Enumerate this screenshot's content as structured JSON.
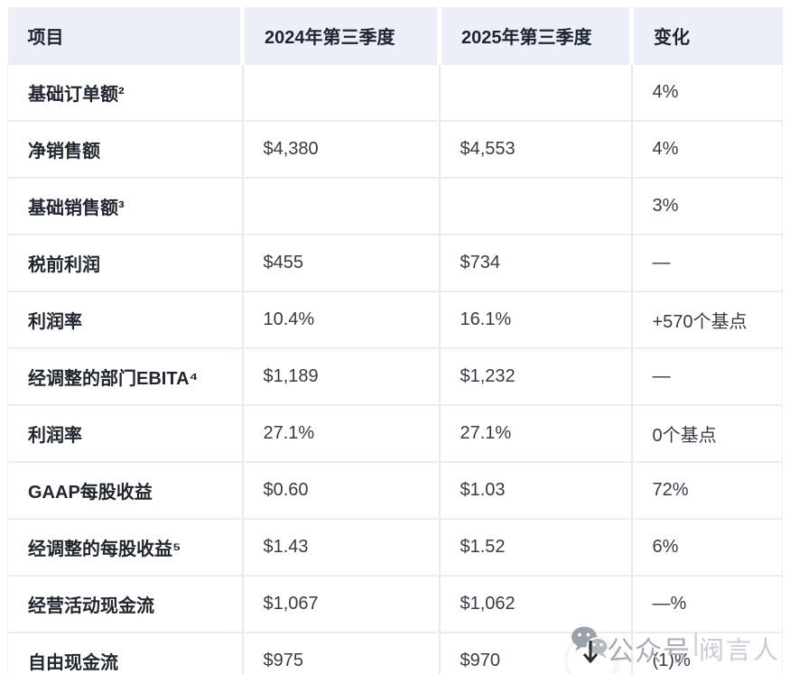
{
  "table": {
    "headers": [
      "项目",
      "2024年第三季度",
      "2025年第三季度",
      "变化"
    ],
    "rows": [
      {
        "label": "基础订单额²",
        "q3_2024": "",
        "q3_2025": "",
        "change": "4%"
      },
      {
        "label": "净销售额",
        "q3_2024": "$4,380",
        "q3_2025": "$4,553",
        "change": "4%"
      },
      {
        "label": "基础销售额³",
        "q3_2024": "",
        "q3_2025": "",
        "change": "3%"
      },
      {
        "label": "税前利润",
        "q3_2024": "$455",
        "q3_2025": "$734",
        "change": "—"
      },
      {
        "label": "利润率",
        "q3_2024": "10.4%",
        "q3_2025": "16.1%",
        "change": "+570个基点"
      },
      {
        "label": "经调整的部门EBITA⁴",
        "q3_2024": "$1,189",
        "q3_2025": "$1,232",
        "change": "—"
      },
      {
        "label": "利润率",
        "q3_2024": "27.1%",
        "q3_2025": "27.1%",
        "change": "0个基点"
      },
      {
        "label": "GAAP每股收益",
        "q3_2024": "$0.60",
        "q3_2025": "$1.03",
        "change": "72%"
      },
      {
        "label": "经调整的每股收益⁵",
        "q3_2024": "$1.43",
        "q3_2025": "$1.52",
        "change": "6%"
      },
      {
        "label": "经营活动现金流",
        "q3_2024": "$1,067",
        "q3_2025": "$1,062",
        "change": "—%"
      },
      {
        "label": "自由现金流",
        "q3_2024": "$975",
        "q3_2025": "$970",
        "change": "(1)%"
      }
    ]
  },
  "watermark": {
    "icon": "wechat-icon",
    "text_primary": "公众号",
    "separator": "|",
    "text_secondary": "阀言人",
    "download_arrow": "↓"
  },
  "colors": {
    "header_bg": "#EDEFF8",
    "header_text": "#1d2431",
    "label_text": "#20262f",
    "value_text": "#353b45",
    "grid_row": "#ecedf3",
    "grid_col": "#e6e8f2",
    "watermark_primary": "#a8adb5",
    "watermark_secondary": "#c8ccd4",
    "bubble_dark": "#9ba1a9",
    "bubble_light": "#b5bac2"
  }
}
